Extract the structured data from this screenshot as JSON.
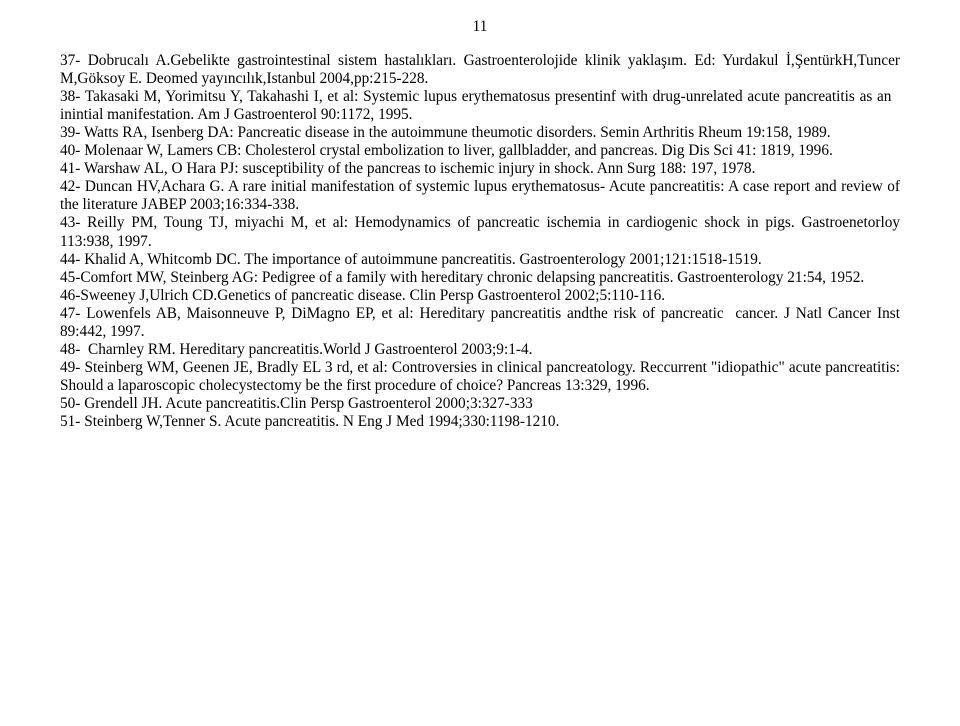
{
  "page_number": "11",
  "font": {
    "family": "Times New Roman",
    "size_pt": 12,
    "color": "#000000"
  },
  "background_color": "#ffffff",
  "references": [
    "37- Dobrucalı A.Gebelikte gastrointestinal sistem hastalıkları. Gastroenterolojide klinik yaklaşım. Ed: Yurdakul İ,ŞentürkH,Tuncer M,Göksoy E. Deomed yayıncılık,Istanbul 2004,pp:215-228.",
    "38- Takasaki M, Yorimitsu Y, Takahashi I, et al: Systemic lupus erythematosus presentinf with drug-unrelated acute pancreatitis as an   inintial manifestation. Am J Gastroenterol 90:1172, 1995.",
    "39- Watts RA, Isenberg DA: Pancreatic disease in the autoimmune theumotic disorders. Semin Arthritis Rheum 19:158, 1989.",
    "40- Molenaar W, Lamers CB: Cholesterol crystal embolization to liver, gallbladder, and pancreas. Dig Dis Sci 41: 1819, 1996.",
    "41- Warshaw AL, O Hara PJ: susceptibility of the pancreas to ischemic injury in shock. Ann Surg 188: 197, 1978.",
    "42- Duncan HV,Achara G. A rare initial manifestation of systemic lupus erythematosus- Acute pancreatitis: A case report and review of the literature JABEP 2003;16:334-338.",
    "43- Reilly PM, Toung TJ, miyachi M, et al: Hemodynamics of pancreatic ischemia in cardiogenic shock in pigs. Gastroenetorloy 113:938, 1997.",
    "44- Khalid A, Whitcomb DC. The importance of autoimmune pancreatitis. Gastroenterology 2001;121:1518-1519.",
    "45-Comfort MW, Steinberg AG: Pedigree of a family with hereditary chronic delapsing pancreatitis. Gastroenterology 21:54, 1952.",
    "46-Sweeney J,Ulrich CD.Genetics of pancreatic disease. Clin Persp Gastroenterol 2002;5:110-116.",
    "47- Lowenfels AB, Maisonneuve P, DiMagno EP, et al: Hereditary pancreatitis andthe risk of pancreatic  cancer. J Natl Cancer Inst 89:442, 1997.",
    "48-  Charnley RM. Hereditary pancreatitis.World J Gastroenterol 2003;9:1-4.",
    "49- Steinberg WM, Geenen JE, Bradly EL 3 rd, et al: Controversies in clinical pancreatology. Reccurrent \"idiopathic\" acute pancreatitis: Should a laparoscopic cholecystectomy be the first procedure of choice? Pancreas 13:329, 1996.",
    "50- Grendell JH. Acute pancreatitis.Clin Persp Gastroenterol 2000;3:327-333",
    "51- Steinberg W,Tenner S. Acute pancreatitis. N Eng J Med 1994;330:1198-1210."
  ]
}
